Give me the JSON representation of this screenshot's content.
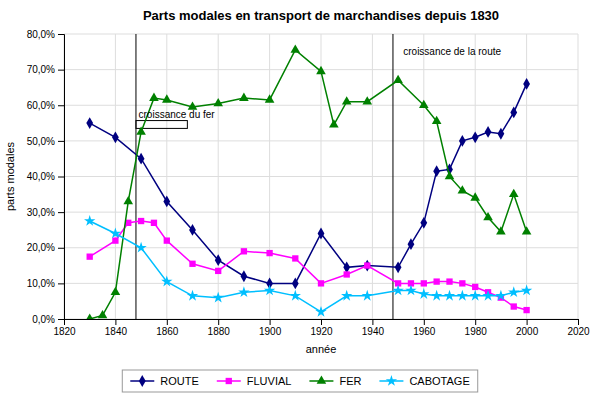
{
  "chart_data": {
    "type": "line",
    "title": "Parts modales en transport de marchandises depuis 1830",
    "xlabel": "année",
    "ylabel": "parts modales",
    "xlim": [
      1820,
      2020
    ],
    "ylim": [
      0.0,
      0.8
    ],
    "xticks": [
      1820,
      1840,
      1860,
      1880,
      1900,
      1920,
      1940,
      1960,
      1980,
      2000,
      2020
    ],
    "yticks": [
      {
        "value": 0.0,
        "label": "0,0%"
      },
      {
        "value": 0.1,
        "label": "10,0%"
      },
      {
        "value": 0.2,
        "label": "20,0%"
      },
      {
        "value": 0.3,
        "label": "30,0%"
      },
      {
        "value": 0.4,
        "label": "40,0%"
      },
      {
        "value": 0.5,
        "label": "50,0%"
      },
      {
        "value": 0.6,
        "label": "60,0%"
      },
      {
        "value": 0.7,
        "label": "70,0%"
      },
      {
        "value": 0.8,
        "label": "80,0%"
      }
    ],
    "grid": true,
    "legend": "bottom",
    "series": [
      {
        "name": "ROUTE",
        "color": "#000080",
        "marker": "diamond",
        "x": [
          1830,
          1840,
          1850,
          1860,
          1870,
          1880,
          1890,
          1900,
          1910,
          1920,
          1930,
          1938,
          1950,
          1955,
          1960,
          1965,
          1970,
          1975,
          1980,
          1985,
          1990,
          1995,
          2000
        ],
        "values": [
          0.55,
          0.51,
          0.45,
          0.33,
          0.25,
          0.165,
          0.12,
          0.1,
          0.1,
          0.24,
          0.145,
          0.15,
          0.145,
          0.21,
          0.27,
          0.415,
          0.42,
          0.5,
          0.51,
          0.525,
          0.52,
          0.58,
          0.66
        ]
      },
      {
        "name": "FLUVIAL",
        "color": "#FF00FF",
        "marker": "square",
        "x": [
          1830,
          1840,
          1845,
          1850,
          1855,
          1860,
          1870,
          1880,
          1890,
          1900,
          1910,
          1920,
          1930,
          1938,
          1950,
          1955,
          1960,
          1965,
          1970,
          1975,
          1980,
          1985,
          1990,
          1995,
          2000
        ],
        "values": [
          0.175,
          0.22,
          0.27,
          0.275,
          0.27,
          0.22,
          0.155,
          0.135,
          0.19,
          0.185,
          0.17,
          0.1,
          0.125,
          0.15,
          0.1,
          0.1,
          0.1,
          0.105,
          0.105,
          0.1,
          0.09,
          0.075,
          0.06,
          0.035,
          0.025
        ]
      },
      {
        "name": "FER",
        "color": "#008000",
        "marker": "triangle",
        "x": [
          1830,
          1835,
          1840,
          1845,
          1850,
          1855,
          1860,
          1870,
          1880,
          1890,
          1900,
          1910,
          1920,
          1925,
          1930,
          1938,
          1950,
          1960,
          1965,
          1970,
          1975,
          1980,
          1985,
          1990,
          1995,
          2000
        ],
        "values": [
          0.0,
          0.01,
          0.075,
          0.33,
          0.525,
          0.62,
          0.615,
          0.595,
          0.605,
          0.62,
          0.615,
          0.755,
          0.695,
          0.545,
          0.61,
          0.61,
          0.67,
          0.6,
          0.555,
          0.4,
          0.36,
          0.34,
          0.285,
          0.245,
          0.35,
          0.245
        ]
      },
      {
        "name": "CABOTAGE",
        "color": "#00BFFF",
        "marker": "star",
        "x": [
          1830,
          1840,
          1850,
          1860,
          1870,
          1880,
          1890,
          1900,
          1910,
          1920,
          1930,
          1938,
          1950,
          1955,
          1960,
          1965,
          1970,
          1975,
          1980,
          1985,
          1990,
          1995,
          2000
        ],
        "values": [
          0.275,
          0.24,
          0.2,
          0.105,
          0.065,
          0.06,
          0.075,
          0.08,
          0.065,
          0.02,
          0.065,
          0.065,
          0.08,
          0.08,
          0.07,
          0.065,
          0.065,
          0.065,
          0.065,
          0.065,
          0.065,
          0.075,
          0.08
        ]
      }
    ],
    "vlines": [
      1848,
      1948
    ],
    "annotations": [
      {
        "text": "croissance du fer",
        "x": 1849,
        "y": 0.56,
        "box": {
          "x": 1848,
          "y": 0.535,
          "width": 20,
          "height": 0.022
        }
      },
      {
        "text": "croissance de la route",
        "x": 1952,
        "y": 0.735
      }
    ]
  }
}
